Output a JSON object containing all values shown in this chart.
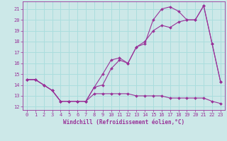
{
  "background_color": "#cce8e8",
  "grid_color": "#aadddd",
  "line_color": "#993399",
  "xlim": [
    -0.5,
    23.5
  ],
  "ylim": [
    11.7,
    21.7
  ],
  "yticks": [
    12,
    13,
    14,
    15,
    16,
    17,
    18,
    19,
    20,
    21
  ],
  "xticks": [
    0,
    1,
    2,
    3,
    4,
    5,
    6,
    7,
    8,
    9,
    10,
    11,
    12,
    13,
    14,
    15,
    16,
    17,
    18,
    19,
    20,
    21,
    22,
    23
  ],
  "xlabel": "Windchill (Refroidissement éolien,°C)",
  "line1_x": [
    0,
    1,
    2,
    3,
    4,
    5,
    6,
    7,
    8,
    9,
    10,
    11,
    12,
    13,
    14,
    15,
    16,
    17,
    18,
    19,
    20,
    21,
    22,
    23
  ],
  "line1_y": [
    14.5,
    14.5,
    14.0,
    13.5,
    12.5,
    12.5,
    12.5,
    12.5,
    13.8,
    14.0,
    15.5,
    16.3,
    16.0,
    17.5,
    18.0,
    19.0,
    19.5,
    19.3,
    19.8,
    20.0,
    20.0,
    21.3,
    17.8,
    14.3
  ],
  "line2_x": [
    0,
    1,
    2,
    3,
    4,
    5,
    6,
    7,
    8,
    9,
    10,
    11,
    12,
    13,
    14,
    15,
    16,
    17,
    18,
    19,
    20,
    21,
    22,
    23
  ],
  "line2_y": [
    14.5,
    14.5,
    14.0,
    13.5,
    12.5,
    12.5,
    12.5,
    12.5,
    13.2,
    13.2,
    13.2,
    13.2,
    13.2,
    13.0,
    13.0,
    13.0,
    13.0,
    12.8,
    12.8,
    12.8,
    12.8,
    12.8,
    12.5,
    12.3
  ],
  "line3_x": [
    0,
    1,
    2,
    3,
    4,
    5,
    6,
    7,
    8,
    9,
    10,
    11,
    12,
    13,
    14,
    15,
    16,
    17,
    18,
    19,
    20,
    21,
    22,
    23
  ],
  "line3_y": [
    14.5,
    14.5,
    14.0,
    13.5,
    12.5,
    12.5,
    12.5,
    12.5,
    13.8,
    15.0,
    16.3,
    16.5,
    16.0,
    17.5,
    17.8,
    20.0,
    21.0,
    21.2,
    20.8,
    20.0,
    20.0,
    21.3,
    17.8,
    14.3
  ],
  "tick_labelsize": 5.0,
  "xlabel_fontsize": 5.5,
  "linewidth": 0.8,
  "markersize": 2.0
}
